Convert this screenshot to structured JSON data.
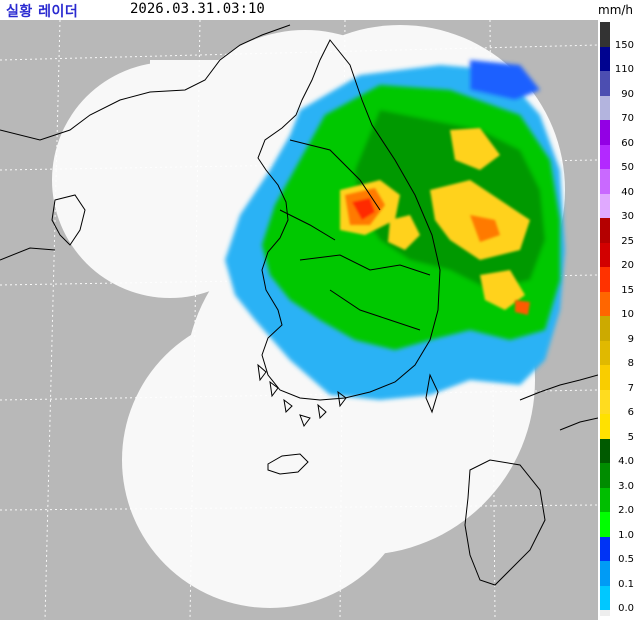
{
  "header": {
    "title": "실황 레이더",
    "timestamp": "2026.03.31.03:10",
    "unit": "mm/h"
  },
  "legend": {
    "items": [
      {
        "label": "150",
        "color": "#333333"
      },
      {
        "label": "110",
        "color": "#000390"
      },
      {
        "label": "90",
        "color": "#4c4eb1"
      },
      {
        "label": "70",
        "color": "#b3b4de"
      },
      {
        "label": "60",
        "color": "#9300e4"
      },
      {
        "label": "50",
        "color": "#b329ff"
      },
      {
        "label": "40",
        "color": "#c969ff"
      },
      {
        "label": "30",
        "color": "#e0a9ff"
      },
      {
        "label": "25",
        "color": "#b40000"
      },
      {
        "label": "20",
        "color": "#d20000"
      },
      {
        "label": "15",
        "color": "#ff3200"
      },
      {
        "label": "10",
        "color": "#ff6600"
      },
      {
        "label": "9",
        "color": "#ccaa00"
      },
      {
        "label": "8",
        "color": "#e0b900"
      },
      {
        "label": "7",
        "color": "#f9cd00"
      },
      {
        "label": "6",
        "color": "#ffdc1f"
      },
      {
        "label": "5",
        "color": "#ffe100"
      },
      {
        "label": "4.0",
        "color": "#005a00"
      },
      {
        "label": "3.0",
        "color": "#008c00"
      },
      {
        "label": "2.0",
        "color": "#00be00"
      },
      {
        "label": "1.0",
        "color": "#00ff00"
      },
      {
        "label": "0.5",
        "color": "#0033f5"
      },
      {
        "label": "0.1",
        "color": "#009bf5"
      },
      {
        "label": "0.0",
        "color": "#00c8ff"
      }
    ],
    "baseline_color": "#eeeeee"
  }
}
